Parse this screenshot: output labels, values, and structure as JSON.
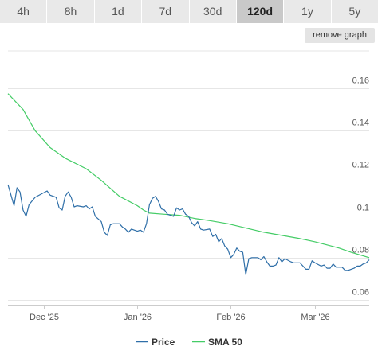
{
  "range_buttons": [
    {
      "label": "4h",
      "active": false
    },
    {
      "label": "8h",
      "active": false
    },
    {
      "label": "1d",
      "active": false
    },
    {
      "label": "7d",
      "active": false
    },
    {
      "label": "30d",
      "active": false
    },
    {
      "label": "120d",
      "active": true
    },
    {
      "label": "1y",
      "active": false
    },
    {
      "label": "5y",
      "active": false
    }
  ],
  "remove_graph_label": "remove graph",
  "chart_data": {
    "type": "line",
    "x_start": "2025-11-19",
    "x_end": "2026-03-19",
    "x_ticks": [
      {
        "date": "2025-12-01",
        "label": "Dec '25"
      },
      {
        "date": "2026-01-01",
        "label": "Jan '26"
      },
      {
        "date": "2026-02-01",
        "label": "Feb '26"
      },
      {
        "date": "2026-03-01",
        "label": "Mar '26"
      }
    ],
    "ylim": [
      0.06,
      0.16
    ],
    "y_ticks": [
      {
        "value": 0.06,
        "label": "0.06"
      },
      {
        "value": 0.08,
        "label": "0.08"
      },
      {
        "value": 0.1,
        "label": "0.1"
      },
      {
        "value": 0.12,
        "label": "0.12"
      },
      {
        "value": 0.14,
        "label": "0.14"
      },
      {
        "value": 0.16,
        "label": "0.16"
      }
    ],
    "grid": true,
    "legend_position": "bottom",
    "series": [
      {
        "name": "Price",
        "color": "#2f6fa8",
        "points": [
          [
            "2025-11-19",
            0.1145
          ],
          [
            "2025-11-20",
            0.1095
          ],
          [
            "2025-11-21",
            0.1045
          ],
          [
            "2025-11-22",
            0.113
          ],
          [
            "2025-11-23",
            0.111
          ],
          [
            "2025-11-24",
            0.1025
          ],
          [
            "2025-11-25",
            0.0995
          ],
          [
            "2025-11-26",
            0.105
          ],
          [
            "2025-11-28",
            0.1085
          ],
          [
            "2025-11-30",
            0.11
          ],
          [
            "2025-12-02",
            0.1115
          ],
          [
            "2025-12-03",
            0.1095
          ],
          [
            "2025-12-05",
            0.1085
          ],
          [
            "2025-12-06",
            0.1035
          ],
          [
            "2025-12-07",
            0.1025
          ],
          [
            "2025-12-08",
            0.109
          ],
          [
            "2025-12-09",
            0.111
          ],
          [
            "2025-12-10",
            0.1085
          ],
          [
            "2025-12-11",
            0.104
          ],
          [
            "2025-12-12",
            0.1045
          ],
          [
            "2025-12-14",
            0.104
          ],
          [
            "2025-12-15",
            0.1045
          ],
          [
            "2025-12-16",
            0.103
          ],
          [
            "2025-12-17",
            0.104
          ],
          [
            "2025-12-18",
            0.0995
          ],
          [
            "2025-12-20",
            0.097
          ],
          [
            "2025-12-21",
            0.092
          ],
          [
            "2025-12-22",
            0.0905
          ],
          [
            "2025-12-23",
            0.0955
          ],
          [
            "2025-12-24",
            0.096
          ],
          [
            "2025-12-26",
            0.096
          ],
          [
            "2025-12-27",
            0.0945
          ],
          [
            "2025-12-28",
            0.0935
          ],
          [
            "2025-12-29",
            0.092
          ],
          [
            "2025-12-30",
            0.0935
          ],
          [
            "2026-01-01",
            0.0925
          ],
          [
            "2026-01-02",
            0.093
          ],
          [
            "2026-01-03",
            0.092
          ],
          [
            "2026-01-04",
            0.096
          ],
          [
            "2026-01-05",
            0.105
          ],
          [
            "2026-01-06",
            0.108
          ],
          [
            "2026-01-07",
            0.109
          ],
          [
            "2026-01-08",
            0.1065
          ],
          [
            "2026-01-09",
            0.103
          ],
          [
            "2026-01-10",
            0.1025
          ],
          [
            "2026-01-11",
            0.1005
          ],
          [
            "2026-01-13",
            0.0995
          ],
          [
            "2026-01-14",
            0.1035
          ],
          [
            "2026-01-15",
            0.1025
          ],
          [
            "2026-01-16",
            0.103
          ],
          [
            "2026-01-17",
            0.1005
          ],
          [
            "2026-01-18",
            0.0995
          ],
          [
            "2026-01-19",
            0.0965
          ],
          [
            "2026-01-20",
            0.095
          ],
          [
            "2026-01-21",
            0.097
          ],
          [
            "2026-01-22",
            0.0935
          ],
          [
            "2026-01-23",
            0.093
          ],
          [
            "2026-01-25",
            0.0935
          ],
          [
            "2026-01-26",
            0.09
          ],
          [
            "2026-01-27",
            0.091
          ],
          [
            "2026-01-28",
            0.0875
          ],
          [
            "2026-01-29",
            0.089
          ],
          [
            "2026-01-30",
            0.0855
          ],
          [
            "2026-01-31",
            0.084
          ],
          [
            "2026-02-01",
            0.08
          ],
          [
            "2026-02-02",
            0.0815
          ],
          [
            "2026-02-03",
            0.0845
          ],
          [
            "2026-02-04",
            0.083
          ],
          [
            "2026-02-05",
            0.0825
          ],
          [
            "2026-02-06",
            0.072
          ],
          [
            "2026-02-07",
            0.0795
          ],
          [
            "2026-02-08",
            0.08
          ],
          [
            "2026-02-10",
            0.08
          ],
          [
            "2026-02-11",
            0.079
          ],
          [
            "2026-02-12",
            0.0805
          ],
          [
            "2026-02-13",
            0.078
          ],
          [
            "2026-02-14",
            0.076
          ],
          [
            "2026-02-15",
            0.076
          ],
          [
            "2026-02-16",
            0.0765
          ],
          [
            "2026-02-17",
            0.08
          ],
          [
            "2026-02-18",
            0.078
          ],
          [
            "2026-02-19",
            0.0795
          ],
          [
            "2026-02-21",
            0.078
          ],
          [
            "2026-02-22",
            0.0775
          ],
          [
            "2026-02-24",
            0.0775
          ],
          [
            "2026-02-25",
            0.076
          ],
          [
            "2026-02-26",
            0.0745
          ],
          [
            "2026-02-27",
            0.0745
          ],
          [
            "2026-02-28",
            0.0785
          ],
          [
            "2026-03-01",
            0.0775
          ],
          [
            "2026-03-03",
            0.076
          ],
          [
            "2026-03-04",
            0.0765
          ],
          [
            "2026-03-05",
            0.075
          ],
          [
            "2026-03-06",
            0.075
          ],
          [
            "2026-03-07",
            0.077
          ],
          [
            "2026-03-08",
            0.0755
          ],
          [
            "2026-03-10",
            0.0755
          ],
          [
            "2026-03-11",
            0.074
          ],
          [
            "2026-03-12",
            0.074
          ],
          [
            "2026-03-14",
            0.075
          ],
          [
            "2026-03-15",
            0.076
          ],
          [
            "2026-03-16",
            0.076
          ],
          [
            "2026-03-17",
            0.077
          ],
          [
            "2026-03-18",
            0.0775
          ],
          [
            "2026-03-19",
            0.079
          ]
        ]
      },
      {
        "name": "SMA 50",
        "color": "#44cc66",
        "points": [
          [
            "2025-11-19",
            0.1575
          ],
          [
            "2025-11-24",
            0.15
          ],
          [
            "2025-11-28",
            0.14
          ],
          [
            "2025-12-03",
            0.132
          ],
          [
            "2025-12-08",
            0.127
          ],
          [
            "2025-12-15",
            0.122
          ],
          [
            "2025-12-20",
            0.1165
          ],
          [
            "2025-12-26",
            0.109
          ],
          [
            "2026-01-01",
            0.1045
          ],
          [
            "2026-01-03",
            0.1025
          ],
          [
            "2026-01-05",
            0.101
          ],
          [
            "2026-01-10",
            0.1005
          ],
          [
            "2026-01-15",
            0.1
          ],
          [
            "2026-01-20",
            0.0985
          ],
          [
            "2026-01-25",
            0.0975
          ],
          [
            "2026-01-31",
            0.096
          ],
          [
            "2026-02-06",
            0.094
          ],
          [
            "2026-02-12",
            0.092
          ],
          [
            "2026-02-18",
            0.0905
          ],
          [
            "2026-02-24",
            0.089
          ],
          [
            "2026-03-01",
            0.0875
          ],
          [
            "2026-03-05",
            0.086
          ],
          [
            "2026-03-09",
            0.0845
          ],
          [
            "2026-03-13",
            0.0825
          ],
          [
            "2026-03-19",
            0.08
          ]
        ]
      }
    ]
  }
}
